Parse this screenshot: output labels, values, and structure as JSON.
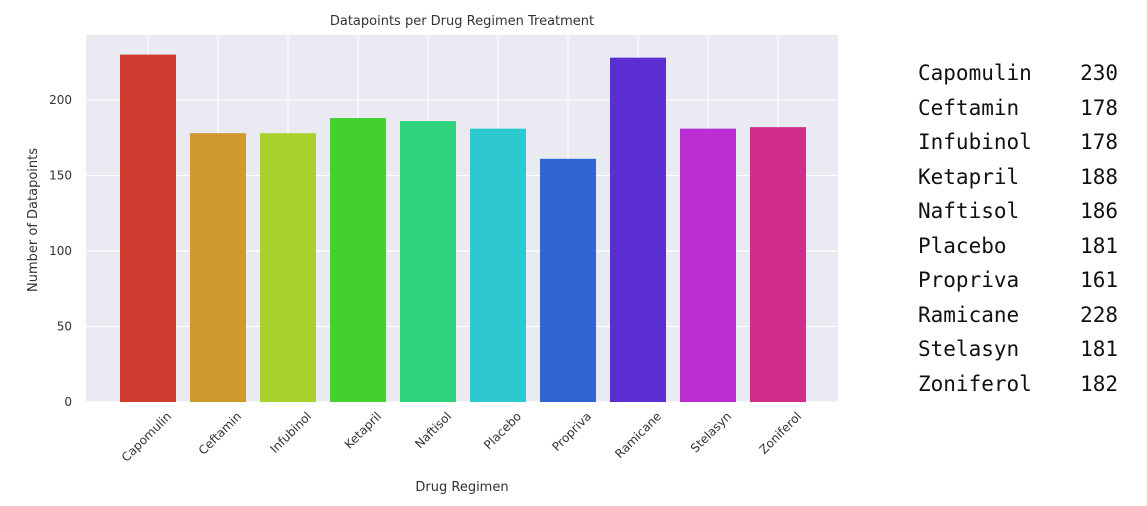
{
  "chart_data": {
    "type": "bar",
    "title": "Datapoints per Drug Regimen Treatment",
    "xlabel": "Drug Regimen",
    "ylabel": "Number of Datapoints",
    "categories": [
      "Capomulin",
      "Ceftamin",
      "Infubinol",
      "Ketapril",
      "Naftisol",
      "Placebo",
      "Propriva",
      "Ramicane",
      "Stelasyn",
      "Zoniferol"
    ],
    "values": [
      230,
      178,
      178,
      188,
      186,
      181,
      161,
      228,
      181,
      182
    ],
    "colors": [
      "#d13a2e",
      "#d0992e",
      "#a8d12e",
      "#43d12e",
      "#2ed17c",
      "#2ec8d1",
      "#2e65d1",
      "#5a2ed1",
      "#bc2ed1",
      "#d12e8b"
    ],
    "ylim": [
      0,
      243
    ],
    "yticks": [
      0,
      50,
      100,
      150,
      200
    ],
    "grid": true,
    "background": "#eaeaf2",
    "grid_color": "#ffffff"
  },
  "summary": {
    "rows": [
      {
        "name": "Capomulin",
        "count": "230"
      },
      {
        "name": "Ceftamin",
        "count": "178"
      },
      {
        "name": "Infubinol",
        "count": "178"
      },
      {
        "name": "Ketapril",
        "count": "188"
      },
      {
        "name": "Naftisol",
        "count": "186"
      },
      {
        "name": "Placebo",
        "count": "181"
      },
      {
        "name": "Propriva",
        "count": "161"
      },
      {
        "name": "Ramicane",
        "count": "228"
      },
      {
        "name": "Stelasyn",
        "count": "181"
      },
      {
        "name": "Zoniferol",
        "count": "182"
      }
    ]
  }
}
